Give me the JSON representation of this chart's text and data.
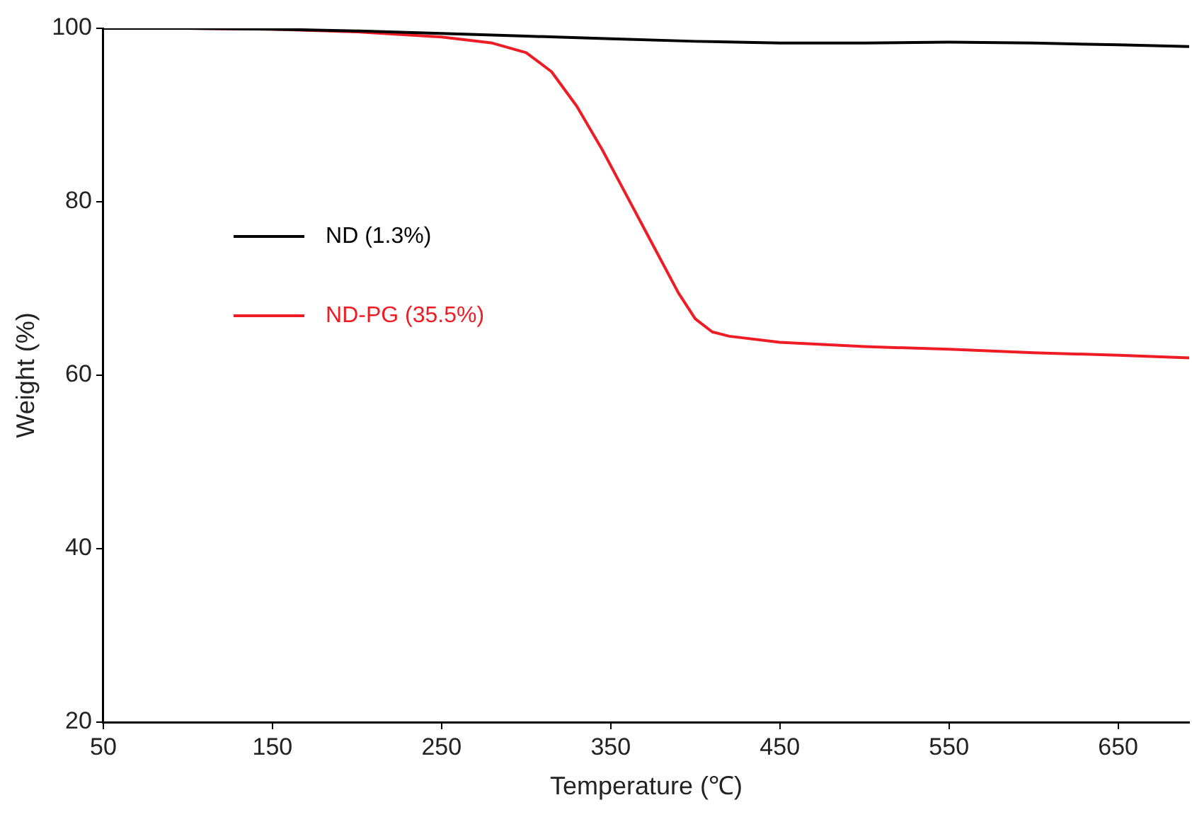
{
  "chart_data": {
    "type": "line",
    "xlabel": "Temperature (℃)",
    "ylabel": "Weight (%)",
    "xlim": [
      50,
      692
    ],
    "xticks": [
      50,
      150,
      250,
      350,
      450,
      550,
      650
    ],
    "ylim": [
      20,
      100
    ],
    "yticks": [
      20,
      40,
      60,
      80,
      100
    ],
    "grid": false,
    "legend": "left",
    "marker": "none",
    "line_style": "solid",
    "series": [
      {
        "name": "ND (1.3%)",
        "color": "#000000",
        "x": [
          50,
          100,
          150,
          200,
          250,
          300,
          350,
          400,
          450,
          500,
          550,
          600,
          650,
          692
        ],
        "values": [
          100,
          100,
          99.9,
          99.7,
          99.4,
          99.1,
          98.8,
          98.5,
          98.3,
          98.3,
          98.4,
          98.3,
          98.1,
          97.9
        ]
      },
      {
        "name": "ND-PG (35.5%)",
        "color": "#ee1c25",
        "x": [
          50,
          100,
          150,
          200,
          250,
          280,
          300,
          315,
          330,
          345,
          360,
          375,
          390,
          400,
          410,
          420,
          450,
          500,
          550,
          600,
          650,
          692
        ],
        "values": [
          100,
          100,
          99.9,
          99.6,
          99,
          98.3,
          97.2,
          95,
          91,
          86,
          80.5,
          75,
          69.5,
          66.5,
          65,
          64.5,
          63.8,
          63.3,
          63,
          62.6,
          62.3,
          62
        ]
      }
    ]
  }
}
